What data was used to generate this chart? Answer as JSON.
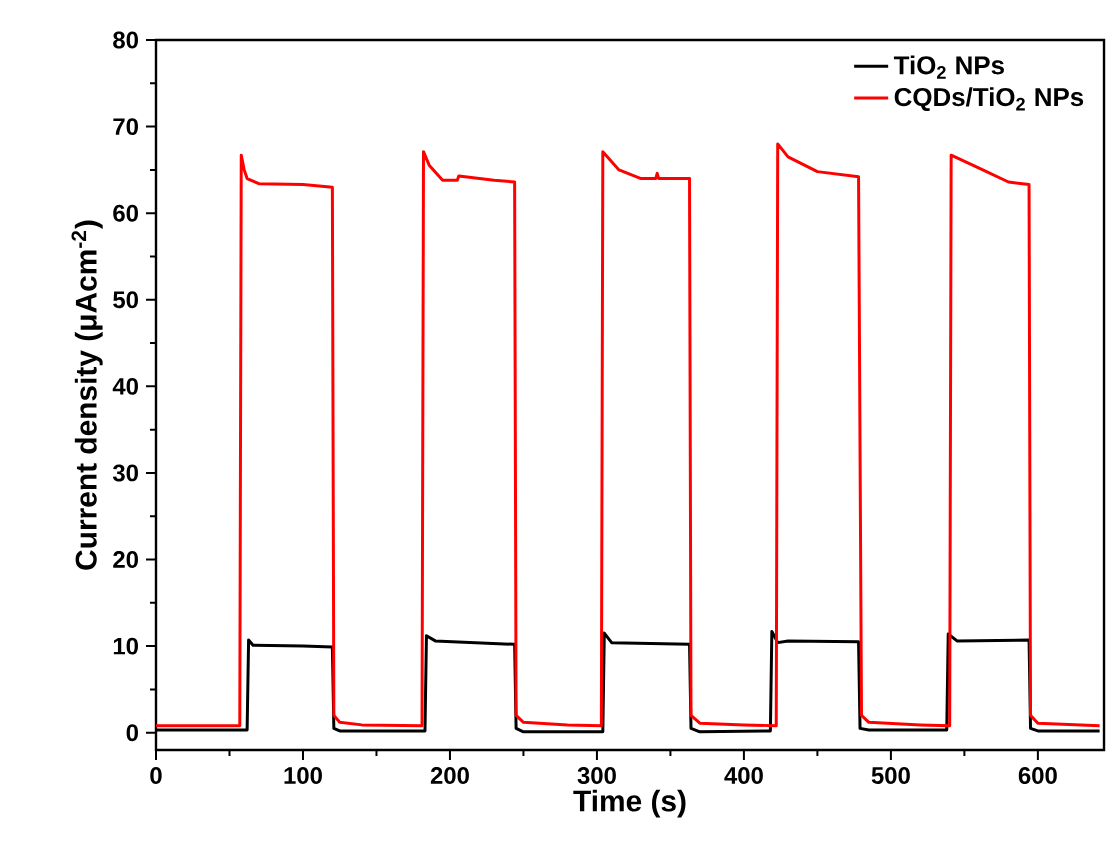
{
  "chart_data": {
    "type": "line",
    "xlabel": "Time (s)",
    "ylabel": "Current density (μAcm$^{-2}$)",
    "xlim": [
      0,
      645
    ],
    "ylim": [
      -2,
      80
    ],
    "xticks": [
      0,
      100,
      200,
      300,
      400,
      500,
      600
    ],
    "yticks": [
      0,
      10,
      20,
      30,
      40,
      50,
      60,
      70,
      80
    ],
    "legend": "top right",
    "marker": "none",
    "grid": false,
    "series": [
      {
        "name": "TiO$_{2}$ NPs",
        "color": "#000000",
        "x": [
          0,
          62,
          63,
          66,
          100,
          120,
          121,
          125,
          183,
          184,
          190,
          244,
          245,
          250,
          304,
          305,
          310,
          363,
          364,
          370,
          418,
          419,
          423,
          430,
          478,
          479,
          485,
          538,
          539,
          545,
          594,
          595,
          600,
          642
        ],
        "values": [
          0.3,
          0.3,
          10.7,
          10.1,
          10.0,
          9.9,
          0.5,
          0.2,
          0.2,
          11.2,
          10.6,
          10.2,
          0.5,
          0.1,
          0.1,
          11.5,
          10.4,
          10.2,
          0.5,
          0.1,
          0.2,
          11.7,
          10.4,
          10.6,
          10.5,
          0.5,
          0.3,
          0.3,
          11.4,
          10.6,
          10.7,
          0.5,
          0.2,
          0.2
        ]
      },
      {
        "name": "CQDs/TiO$_{2}$ NPs",
        "color": "#ff0000",
        "x": [
          0,
          57,
          58,
          60,
          62,
          70,
          100,
          120,
          121,
          125,
          140,
          181,
          182,
          186,
          195,
          205,
          206,
          230,
          244,
          245,
          250,
          280,
          303,
          304,
          315,
          330,
          340,
          341,
          342,
          363,
          364,
          370,
          400,
          422,
          423,
          430,
          450,
          478,
          480,
          485,
          520,
          540,
          541,
          560,
          580,
          594,
          595,
          600,
          642
        ],
        "values": [
          0.8,
          0.8,
          66.7,
          65,
          64,
          63.4,
          63.3,
          63.0,
          2,
          1.2,
          0.9,
          0.8,
          67.1,
          65.5,
          63.8,
          63.8,
          64.3,
          63.8,
          63.6,
          2,
          1.2,
          0.9,
          0.8,
          67.1,
          65,
          64,
          64,
          64.6,
          64,
          64,
          2,
          1.1,
          0.9,
          0.8,
          68,
          66.5,
          64.8,
          64.2,
          2,
          1.2,
          0.9,
          0.8,
          66.7,
          65.2,
          63.6,
          63.3,
          2,
          1.1,
          0.8
        ]
      }
    ]
  }
}
